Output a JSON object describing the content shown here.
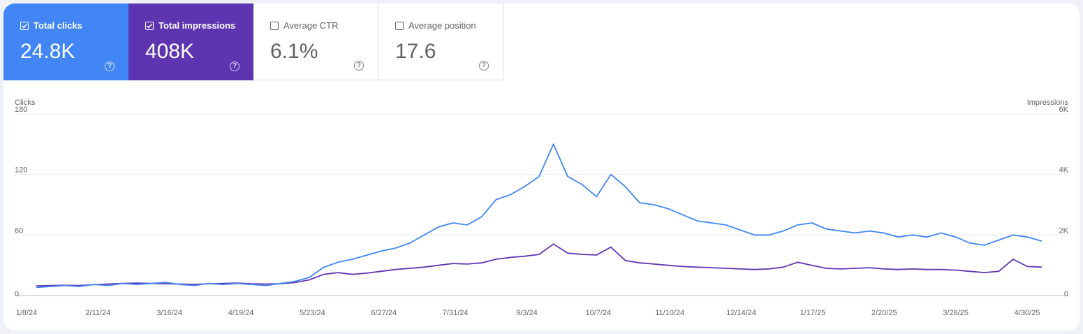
{
  "metrics": [
    {
      "label": "Total clicks",
      "value": "24.8K",
      "checked": true,
      "color": "#4285f4"
    },
    {
      "label": "Total impressions",
      "value": "408K",
      "checked": true,
      "color": "#5e35b1"
    },
    {
      "label": "Average CTR",
      "value": "6.1%",
      "checked": false,
      "color": "#ffffff"
    },
    {
      "label": "Average position",
      "value": "17.6",
      "checked": false,
      "color": "#ffffff"
    }
  ],
  "help_icon": "help-circle-icon",
  "checkbox_icon": "checkbox-icon",
  "chart_data": {
    "type": "line",
    "xlabel": "",
    "left_axis": {
      "label": "Clicks",
      "ticks": [
        "0",
        "60",
        "120",
        "180"
      ],
      "ylim": [
        0,
        180
      ]
    },
    "right_axis": {
      "label": "Impressions",
      "ticks": [
        "0",
        "2K",
        "4K",
        "6K"
      ],
      "ylim": [
        0,
        6000
      ]
    },
    "x_start": "2024-01-08",
    "x_end": "2025-05-12",
    "x_ticks": [
      "1/8/24",
      "2/11/24",
      "3/16/24",
      "4/19/24",
      "5/23/24",
      "6/27/24",
      "7/31/24",
      "9/3/24",
      "10/7/24",
      "11/10/24",
      "12/14/24",
      "1/17/25",
      "2/20/25",
      "3/26/25",
      "4/30/25"
    ],
    "grid": true,
    "legend": "none",
    "series": [
      {
        "name": "Clicks",
        "axis": "left",
        "color": "#4285f4",
        "points": [
          [
            "2024-01-08",
            8
          ],
          [
            "2024-01-15",
            9
          ],
          [
            "2024-01-22",
            10
          ],
          [
            "2024-01-29",
            9
          ],
          [
            "2024-02-05",
            11
          ],
          [
            "2024-02-12",
            10
          ],
          [
            "2024-02-19",
            12
          ],
          [
            "2024-02-26",
            11
          ],
          [
            "2024-03-04",
            12
          ],
          [
            "2024-03-11",
            13
          ],
          [
            "2024-03-18",
            11
          ],
          [
            "2024-03-25",
            10
          ],
          [
            "2024-04-01",
            12
          ],
          [
            "2024-04-08",
            11
          ],
          [
            "2024-04-15",
            12
          ],
          [
            "2024-04-22",
            11
          ],
          [
            "2024-04-29",
            10
          ],
          [
            "2024-05-06",
            12
          ],
          [
            "2024-05-13",
            14
          ],
          [
            "2024-05-20",
            18
          ],
          [
            "2024-05-27",
            28
          ],
          [
            "2024-06-03",
            33
          ],
          [
            "2024-06-10",
            36
          ],
          [
            "2024-06-17",
            40
          ],
          [
            "2024-06-24",
            44
          ],
          [
            "2024-07-01",
            47
          ],
          [
            "2024-07-08",
            52
          ],
          [
            "2024-07-15",
            60
          ],
          [
            "2024-07-22",
            68
          ],
          [
            "2024-07-29",
            72
          ],
          [
            "2024-08-05",
            70
          ],
          [
            "2024-08-12",
            78
          ],
          [
            "2024-08-19",
            95
          ],
          [
            "2024-08-26",
            100
          ],
          [
            "2024-09-02",
            108
          ],
          [
            "2024-09-09",
            118
          ],
          [
            "2024-09-16",
            150
          ],
          [
            "2024-09-23",
            118
          ],
          [
            "2024-09-30",
            110
          ],
          [
            "2024-10-07",
            98
          ],
          [
            "2024-10-14",
            120
          ],
          [
            "2024-10-21",
            108
          ],
          [
            "2024-10-28",
            92
          ],
          [
            "2024-11-04",
            90
          ],
          [
            "2024-11-11",
            86
          ],
          [
            "2024-11-18",
            80
          ],
          [
            "2024-11-25",
            74
          ],
          [
            "2024-12-02",
            72
          ],
          [
            "2024-12-09",
            70
          ],
          [
            "2024-12-16",
            65
          ],
          [
            "2024-12-23",
            60
          ],
          [
            "2024-12-30",
            60
          ],
          [
            "2025-01-06",
            64
          ],
          [
            "2025-01-13",
            70
          ],
          [
            "2025-01-20",
            72
          ],
          [
            "2025-01-27",
            66
          ],
          [
            "2025-02-03",
            64
          ],
          [
            "2025-02-10",
            62
          ],
          [
            "2025-02-17",
            64
          ],
          [
            "2025-02-24",
            62
          ],
          [
            "2025-03-03",
            58
          ],
          [
            "2025-03-10",
            60
          ],
          [
            "2025-03-17",
            58
          ],
          [
            "2025-03-24",
            62
          ],
          [
            "2025-03-31",
            58
          ],
          [
            "2025-04-07",
            52
          ],
          [
            "2025-04-14",
            50
          ],
          [
            "2025-04-21",
            55
          ],
          [
            "2025-04-28",
            60
          ],
          [
            "2025-05-05",
            58
          ],
          [
            "2025-05-12",
            54
          ]
        ]
      },
      {
        "name": "Impressions",
        "axis": "right",
        "color": "#5e35b1",
        "points": [
          [
            "2024-01-08",
            320
          ],
          [
            "2024-01-15",
            330
          ],
          [
            "2024-01-22",
            340
          ],
          [
            "2024-01-29",
            330
          ],
          [
            "2024-02-05",
            360
          ],
          [
            "2024-02-12",
            380
          ],
          [
            "2024-02-19",
            400
          ],
          [
            "2024-02-26",
            410
          ],
          [
            "2024-03-04",
            400
          ],
          [
            "2024-03-11",
            390
          ],
          [
            "2024-03-18",
            380
          ],
          [
            "2024-03-25",
            370
          ],
          [
            "2024-04-01",
            390
          ],
          [
            "2024-04-08",
            400
          ],
          [
            "2024-04-15",
            410
          ],
          [
            "2024-04-22",
            390
          ],
          [
            "2024-04-29",
            380
          ],
          [
            "2024-05-06",
            390
          ],
          [
            "2024-05-13",
            430
          ],
          [
            "2024-05-20",
            520
          ],
          [
            "2024-05-27",
            700
          ],
          [
            "2024-06-03",
            760
          ],
          [
            "2024-06-10",
            700
          ],
          [
            "2024-06-17",
            740
          ],
          [
            "2024-06-24",
            800
          ],
          [
            "2024-07-01",
            860
          ],
          [
            "2024-07-08",
            900
          ],
          [
            "2024-07-15",
            940
          ],
          [
            "2024-07-22",
            1000
          ],
          [
            "2024-07-29",
            1060
          ],
          [
            "2024-08-05",
            1040
          ],
          [
            "2024-08-12",
            1080
          ],
          [
            "2024-08-19",
            1200
          ],
          [
            "2024-08-26",
            1260
          ],
          [
            "2024-09-02",
            1300
          ],
          [
            "2024-09-09",
            1360
          ],
          [
            "2024-09-16",
            1700
          ],
          [
            "2024-09-23",
            1400
          ],
          [
            "2024-09-30",
            1360
          ],
          [
            "2024-10-07",
            1340
          ],
          [
            "2024-10-14",
            1600
          ],
          [
            "2024-10-21",
            1160
          ],
          [
            "2024-10-28",
            1080
          ],
          [
            "2024-11-04",
            1040
          ],
          [
            "2024-11-11",
            1000
          ],
          [
            "2024-11-18",
            960
          ],
          [
            "2024-11-25",
            940
          ],
          [
            "2024-12-02",
            920
          ],
          [
            "2024-12-09",
            900
          ],
          [
            "2024-12-16",
            880
          ],
          [
            "2024-12-23",
            860
          ],
          [
            "2024-12-30",
            880
          ],
          [
            "2025-01-06",
            940
          ],
          [
            "2025-01-13",
            1100
          ],
          [
            "2025-01-20",
            1000
          ],
          [
            "2025-01-27",
            900
          ],
          [
            "2025-02-03",
            880
          ],
          [
            "2025-02-10",
            900
          ],
          [
            "2025-02-17",
            920
          ],
          [
            "2025-02-24",
            880
          ],
          [
            "2025-03-03",
            860
          ],
          [
            "2025-03-10",
            880
          ],
          [
            "2025-03-17",
            860
          ],
          [
            "2025-03-24",
            860
          ],
          [
            "2025-03-31",
            840
          ],
          [
            "2025-04-07",
            800
          ],
          [
            "2025-04-14",
            760
          ],
          [
            "2025-04-21",
            800
          ],
          [
            "2025-04-28",
            1200
          ],
          [
            "2025-05-05",
            960
          ],
          [
            "2025-05-12",
            940
          ]
        ]
      }
    ]
  }
}
